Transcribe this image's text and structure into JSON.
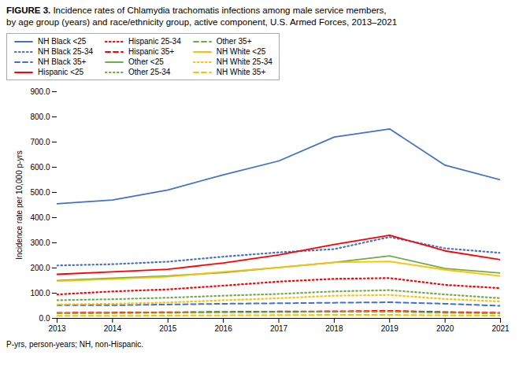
{
  "chart_data": {
    "type": "line",
    "title": "FIGURE 3. Incidence rates of Chlamydia trachomatis infections among male service members,",
    "subtitle": "by age group (years) and race/ethnicity group, active component, U.S. Armed Forces, 2013–2021",
    "caption": "P-yrs, person-years; NH, non-Hispanic.",
    "ylabel": "Incidence rate per 10,000 p-yrs",
    "x": [
      2013,
      2014,
      2015,
      2016,
      2017,
      2018,
      2019,
      2020,
      2021
    ],
    "xlim": [
      2013,
      2021
    ],
    "xticks": [
      2013,
      2014,
      2015,
      2016,
      2017,
      2018,
      2019,
      2020,
      2021
    ],
    "ylim": [
      0,
      900
    ],
    "yticks": [
      {
        "value": 0,
        "label": "0.0"
      },
      {
        "value": 100,
        "label": "100.0"
      },
      {
        "value": 200,
        "label": "200.0"
      },
      {
        "value": 300,
        "label": "300.0"
      },
      {
        "value": 400,
        "label": "400.0"
      },
      {
        "value": 500,
        "label": "500.0"
      },
      {
        "value": 600,
        "label": "600.0"
      },
      {
        "value": 700,
        "label": "700.0"
      },
      {
        "value": 800,
        "label": "800.0"
      },
      {
        "value": 900,
        "label": "900.0"
      }
    ],
    "grid": false,
    "legend": "top left",
    "series": [
      {
        "name": "NH Black <25",
        "color": "#4472C4",
        "line_style": "solid",
        "values": [
          455,
          470,
          510,
          570,
          625,
          720,
          752,
          608,
          550
        ]
      },
      {
        "name": "NH Black 25-34",
        "color": "#4472C4",
        "line_style": "dotted",
        "values": [
          210,
          215,
          225,
          245,
          262,
          275,
          323,
          278,
          260
        ]
      },
      {
        "name": "NH Black 35+",
        "color": "#4472C4",
        "line_style": "dashed",
        "values": [
          52,
          52,
          55,
          58,
          60,
          62,
          64,
          58,
          50
        ]
      },
      {
        "name": "Hispanic <25",
        "color": "#FF0000",
        "line_style": "solid",
        "values": [
          175,
          185,
          195,
          220,
          252,
          293,
          330,
          268,
          233
        ]
      },
      {
        "name": "Hispanic 25-34",
        "color": "#FF0000",
        "line_style": "dotted",
        "values": [
          95,
          107,
          115,
          130,
          146,
          157,
          160,
          133,
          120
        ]
      },
      {
        "name": "Hispanic 35+",
        "color": "#FF0000",
        "line_style": "dashed",
        "values": [
          22,
          23,
          24,
          26,
          27,
          28,
          30,
          25,
          22
        ]
      },
      {
        "name": "Other <25",
        "color": "#70AD47",
        "line_style": "solid",
        "values": [
          150,
          160,
          168,
          182,
          202,
          222,
          248,
          198,
          180
        ]
      },
      {
        "name": "Other 25-34",
        "color": "#70AD47",
        "line_style": "dotted",
        "values": [
          72,
          76,
          82,
          90,
          97,
          107,
          112,
          95,
          80
        ]
      },
      {
        "name": "Other 35+",
        "color": "#70AD47",
        "line_style": "dashed",
        "values": [
          20,
          21,
          22,
          24,
          25,
          26,
          27,
          22,
          20
        ]
      },
      {
        "name": "NH White <25",
        "color": "#FFC000",
        "line_style": "solid",
        "values": [
          148,
          156,
          165,
          185,
          202,
          222,
          226,
          193,
          168
        ]
      },
      {
        "name": "NH White 25-34",
        "color": "#FFC000",
        "line_style": "dotted",
        "values": [
          55,
          58,
          63,
          72,
          80,
          90,
          93,
          77,
          67
        ]
      },
      {
        "name": "NH White 35+",
        "color": "#FFC000",
        "line_style": "dashed",
        "values": [
          10,
          10,
          11,
          12,
          13,
          14,
          14,
          12,
          11
        ]
      }
    ]
  }
}
